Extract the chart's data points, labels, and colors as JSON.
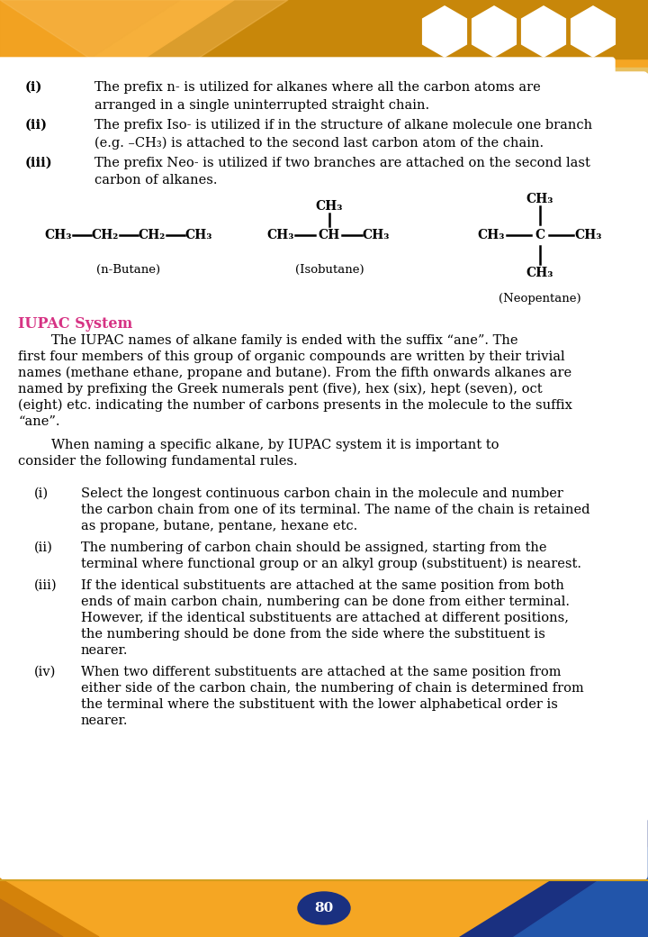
{
  "page_number": "80",
  "bg_color": "#ffffff",
  "header_orange": "#F5A623",
  "header_dark_orange": "#C8870A",
  "iupac_color": "#D63384",
  "text_color": "#000000",
  "footer_orange": "#F5A623",
  "navy_blue": "#1a3080",
  "prefix_items": [
    {
      "num": "(i)",
      "text": "The prefix n- is utilized for alkanes where all the carbon atoms are\narranged in a single uninterrupted straight chain."
    },
    {
      "num": "(ii)",
      "text": "The prefix Iso- is utilized if in the structure of alkane molecule one branch\n(e.g. –CH₃) is attached to the second last carbon atom of the chain."
    },
    {
      "num": "(iii)",
      "text": "The prefix Neo- is utilized if two branches are attached on the second last\ncarbon of alkanes."
    }
  ],
  "iupac_title": "IUPAC System",
  "iupac_para1_line1": "        The IUPAC names of alkane family is ended with the suffix “ane”. The",
  "iupac_para1_line2": "first four members of this group of organic compounds are written by their trivial",
  "iupac_para1_line3": "names (methane ethane, propane and butane). From the fifth onwards alkanes are",
  "iupac_para1_line4": "named by prefixing the Greek numerals pent (five), hex (six), hept (seven), oct",
  "iupac_para1_line5": "(eight) etc. indicating the number of carbons presents in the molecule to the suffix",
  "iupac_para1_line6": "“ane”.",
  "iupac_para2_line1": "        When naming a specific alkane, by IUPAC system it is important to",
  "iupac_para2_line2": "consider the following fundamental rules.",
  "rules": [
    {
      "num": "(i)",
      "lines": [
        "Select the longest continuous carbon chain in the molecule and number",
        "the carbon chain from one of its terminal. The name of the chain is retained",
        "as propane, butane, pentane, hexane etc."
      ]
    },
    {
      "num": "(ii)",
      "lines": [
        "The numbering of carbon chain should be assigned, starting from the",
        "terminal where functional group or an alkyl group (substituent) is nearest."
      ]
    },
    {
      "num": "(iii)",
      "lines": [
        "If the identical substituents are attached at the same position from both",
        "ends of main carbon chain, numbering can be done from either terminal.",
        "However, if the identical substituents are attached at different positions,",
        "the numbering should be done from the side where the substituent is",
        "nearer."
      ]
    },
    {
      "num": "(iv)",
      "lines": [
        "When two different substituents are attached at the same position from",
        "either side of the carbon chain, the numbering of chain is determined from",
        "the terminal where the substituent with the lower alphabetical order is",
        "nearer."
      ]
    }
  ]
}
